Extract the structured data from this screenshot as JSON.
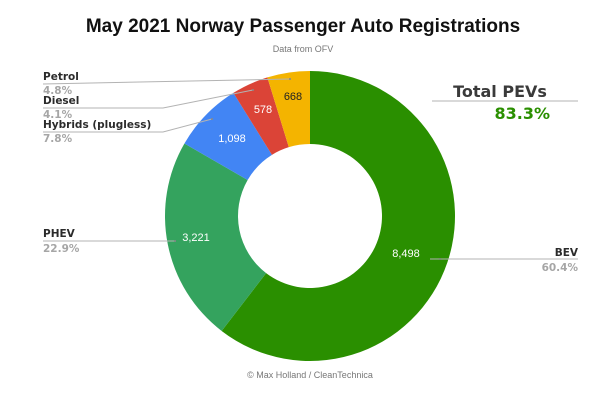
{
  "chart_data": {
    "type": "pie",
    "donut": true,
    "title": "May 2021 Norway Passenger Auto Registrations",
    "subtitle": "Data from OFV",
    "credit": "© Max Holland / CleanTechnica",
    "slices": [
      {
        "label": "BEV",
        "value": 8498,
        "value_label": "8,498",
        "percent_label": "60.4%",
        "color": "#2a8f00",
        "value_color": "#ffffff"
      },
      {
        "label": "PHEV",
        "value": 3221,
        "value_label": "3,221",
        "percent_label": "22.9%",
        "color": "#34a35e",
        "value_color": "#ffffff"
      },
      {
        "label": "Hybrids (plugless)",
        "value": 1098,
        "value_label": "1,098",
        "percent_label": "7.8%",
        "color": "#4285f4",
        "value_color": "#ffffff"
      },
      {
        "label": "Diesel",
        "value": 578,
        "value_label": "578",
        "percent_label": "4.1%",
        "color": "#db4437",
        "value_color": "#ffffff"
      },
      {
        "label": "Petrol",
        "value": 668,
        "value_label": "668",
        "percent_label": "4.8%",
        "color": "#f4b400",
        "value_color": "#222222"
      }
    ],
    "start_angle": "12 o'clock",
    "direction": "clockwise",
    "annotation": {
      "title": "Total PEVs",
      "value": "83.3%",
      "color": "#2a8f00"
    }
  }
}
